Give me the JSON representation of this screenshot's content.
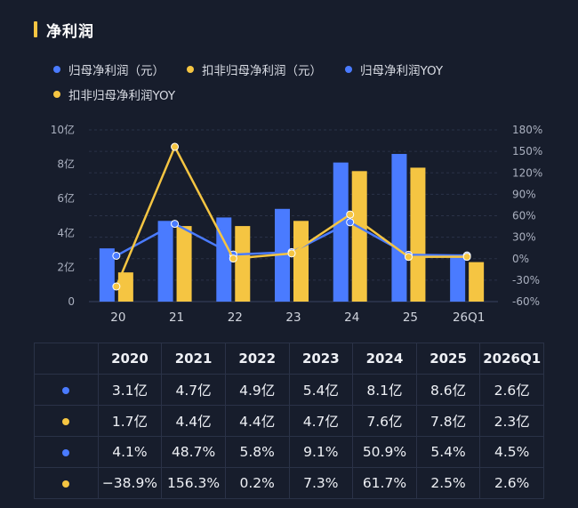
{
  "header": {
    "title": "净利润"
  },
  "legend": [
    {
      "label": "归母净利润（元）",
      "color": "#4a7bff"
    },
    {
      "label": "扣非归母净利润（元）",
      "color": "#f5c542"
    },
    {
      "label": "归母净利润YOY",
      "color": "#4a7bff"
    },
    {
      "label": "扣非归母净利润YOY",
      "color": "#f5c542"
    }
  ],
  "colors": {
    "blue": "#4a7bff",
    "yellow": "#f5c542",
    "background": "#171d2c"
  },
  "chart_data": {
    "type": "bar",
    "title": "净利润",
    "categories": [
      "20",
      "21",
      "22",
      "23",
      "24",
      "25",
      "26Q1"
    ],
    "y_left": {
      "ticks": [
        "0",
        "2亿",
        "4亿",
        "6亿",
        "8亿",
        "10亿"
      ],
      "ylim": [
        0,
        10
      ],
      "unit": "亿"
    },
    "y_right": {
      "ticks": [
        "-60%",
        "-30%",
        "0%",
        "30%",
        "60%",
        "90%",
        "120%",
        "150%",
        "180%"
      ],
      "ylim": [
        -60,
        180
      ],
      "unit": "%"
    },
    "series": [
      {
        "name": "归母净利润（元）",
        "kind": "bar",
        "axis": "left",
        "color": "#4a7bff",
        "values": [
          3.1,
          4.7,
          4.9,
          5.4,
          8.1,
          8.6,
          2.6
        ]
      },
      {
        "name": "扣非归母净利润（元）",
        "kind": "bar",
        "axis": "left",
        "color": "#f5c542",
        "values": [
          1.7,
          4.4,
          4.4,
          4.7,
          7.6,
          7.8,
          2.3
        ]
      },
      {
        "name": "归母净利润YOY",
        "kind": "line",
        "axis": "right",
        "color": "#4a7bff",
        "values": [
          4.1,
          48.7,
          5.8,
          9.1,
          50.9,
          5.4,
          4.5
        ]
      },
      {
        "name": "扣非归母净利润YOY",
        "kind": "line",
        "axis": "right",
        "color": "#f5c542",
        "values": [
          -38.9,
          156.3,
          0.2,
          7.3,
          61.7,
          2.5,
          2.6
        ]
      }
    ],
    "grid": true,
    "legend_position": "top"
  },
  "table": {
    "headers": [
      "2020",
      "2021",
      "2022",
      "2023",
      "2024",
      "2025",
      "2026Q1"
    ],
    "rows": [
      {
        "color": "#4a7bff",
        "cells": [
          "3.1亿",
          "4.7亿",
          "4.9亿",
          "5.4亿",
          "8.1亿",
          "8.6亿",
          "2.6亿"
        ]
      },
      {
        "color": "#f5c542",
        "cells": [
          "1.7亿",
          "4.4亿",
          "4.4亿",
          "4.7亿",
          "7.6亿",
          "7.8亿",
          "2.3亿"
        ]
      },
      {
        "color": "#4a7bff",
        "cells": [
          "4.1%",
          "48.7%",
          "5.8%",
          "9.1%",
          "50.9%",
          "5.4%",
          "4.5%"
        ]
      },
      {
        "color": "#f5c542",
        "cells": [
          "−38.9%",
          "156.3%",
          "0.2%",
          "7.3%",
          "61.7%",
          "2.5%",
          "2.6%"
        ]
      }
    ]
  }
}
